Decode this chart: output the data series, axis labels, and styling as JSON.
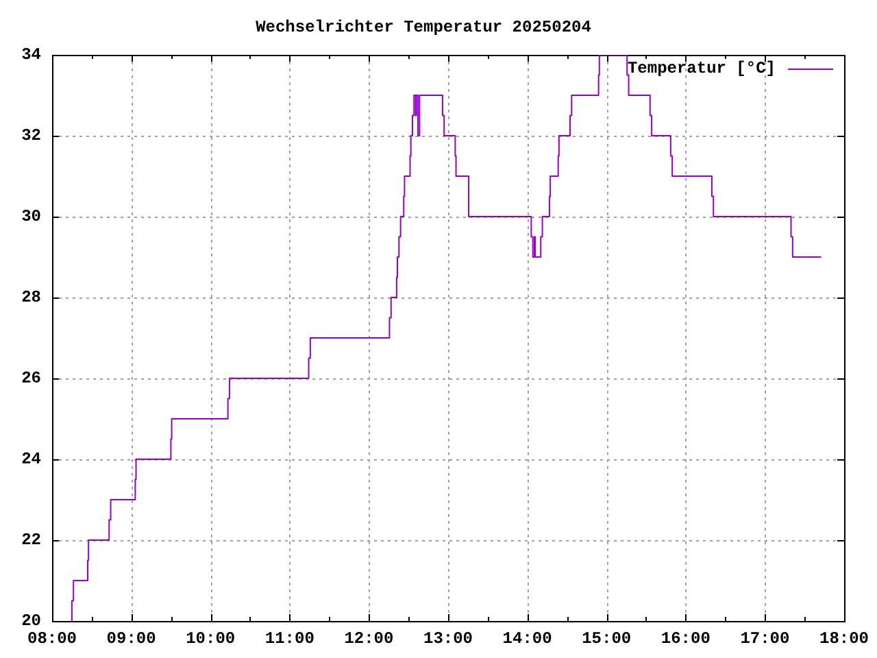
{
  "chart_data": {
    "type": "step",
    "title": "Wechselrichter Temperatur 20250204",
    "x": [
      8.24,
      8.25,
      8.27,
      8.45,
      8.46,
      8.72,
      8.74,
      9.05,
      9.06,
      9.5,
      9.51,
      10.22,
      10.24,
      11.24,
      11.26,
      12.26,
      12.28,
      12.35,
      12.36,
      12.38,
      12.4,
      12.44,
      12.45,
      12.52,
      12.53,
      12.55,
      12.57,
      12.59,
      12.6,
      12.62,
      12.64,
      12.93,
      12.95,
      13.09,
      13.1,
      13.26,
      14.05,
      14.07,
      14.09,
      14.1,
      14.17,
      14.19,
      14.28,
      14.29,
      14.39,
      14.4,
      14.54,
      14.56,
      14.9,
      14.91,
      15.26,
      15.28,
      15.55,
      15.57,
      15.81,
      15.83,
      16.33,
      16.35,
      17.33,
      17.35,
      17.71
    ],
    "series": [
      {
        "name": "Temperatur [°C]",
        "color": "#9400d3",
        "values": [
          20,
          20.5,
          21,
          21.5,
          22,
          22.5,
          23,
          23.5,
          24,
          24.5,
          25,
          25.5,
          26,
          26.5,
          27,
          27.5,
          28,
          28.5,
          29,
          29.5,
          30,
          30.5,
          31,
          31.5,
          32,
          32.5,
          33,
          32.5,
          33,
          32,
          33,
          32.5,
          32,
          31.5,
          31,
          30,
          29.5,
          29,
          29.5,
          29,
          29.5,
          30,
          30.5,
          31,
          31.5,
          32,
          32.5,
          33,
          33.5,
          34,
          33.5,
          33,
          32.5,
          32,
          31.5,
          31,
          30.5,
          30,
          29.5,
          29,
          29
        ]
      }
    ],
    "xlim": [
      8,
      18
    ],
    "xticks": [
      {
        "value": 8,
        "label": "08:00"
      },
      {
        "value": 8.5,
        "label": null
      },
      {
        "value": 9,
        "label": "09:00"
      },
      {
        "value": 9.5,
        "label": null
      },
      {
        "value": 10,
        "label": "10:00"
      },
      {
        "value": 10.5,
        "label": null
      },
      {
        "value": 11,
        "label": "11:00"
      },
      {
        "value": 11.5,
        "label": null
      },
      {
        "value": 12,
        "label": "12:00"
      },
      {
        "value": 12.5,
        "label": null
      },
      {
        "value": 13,
        "label": "13:00"
      },
      {
        "value": 13.5,
        "label": null
      },
      {
        "value": 14,
        "label": "14:00"
      },
      {
        "value": 14.5,
        "label": null
      },
      {
        "value": 15,
        "label": "15:00"
      },
      {
        "value": 15.5,
        "label": null
      },
      {
        "value": 16,
        "label": "16:00"
      },
      {
        "value": 16.5,
        "label": null
      },
      {
        "value": 17,
        "label": "17:00"
      },
      {
        "value": 17.5,
        "label": null
      },
      {
        "value": 18,
        "label": "18:00"
      }
    ],
    "ylim": [
      20,
      34
    ],
    "yticks": [
      20,
      22,
      24,
      26,
      28,
      30,
      32,
      34
    ],
    "grid": true,
    "legend": "top right",
    "marker": "none",
    "line_style": "solid"
  }
}
